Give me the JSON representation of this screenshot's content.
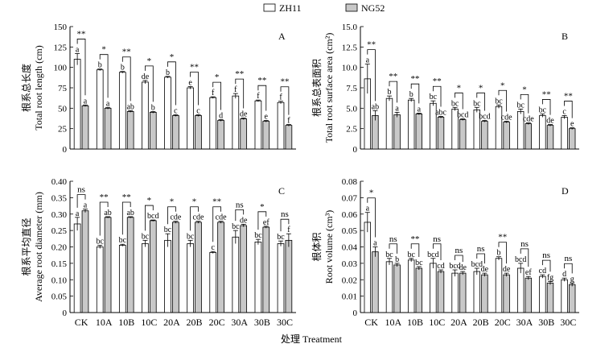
{
  "legend": {
    "series": [
      {
        "name": "ZH11",
        "color": "#ffffff"
      },
      {
        "name": "NG52",
        "color": "#c8c8c8"
      }
    ]
  },
  "x_axis_title": "处理 Treatment",
  "chart_data": [
    {
      "type": "bar",
      "panel": "A",
      "ylabel_cn": "根系总长度",
      "ylabel_en": "Total root length (cm)",
      "ylim": [
        0,
        150
      ],
      "yticks": [
        "0",
        "25",
        "50",
        "75",
        "100",
        "125",
        "150"
      ],
      "ytick_values": [
        0,
        25,
        50,
        75,
        100,
        125,
        150
      ],
      "categories": [
        "CK",
        "10A",
        "10B",
        "10C",
        "20A",
        "20B",
        "20C",
        "30A",
        "30B",
        "30C"
      ],
      "series": [
        {
          "name": "ZH11",
          "values": [
            110,
            97,
            94,
            82,
            88,
            75,
            63,
            65,
            59,
            57
          ],
          "errors": [
            7,
            1,
            1,
            2,
            1,
            1.5,
            1,
            3,
            1,
            1.5
          ],
          "letters": [
            "a",
            "b",
            "b",
            "de",
            "b",
            "e",
            "f",
            "f",
            "f",
            "f"
          ]
        },
        {
          "name": "NG52",
          "values": [
            53,
            50,
            46,
            45,
            41,
            41,
            35,
            37,
            34,
            29
          ],
          "errors": [
            1,
            1,
            1,
            1,
            1,
            1,
            1,
            1,
            1,
            1
          ],
          "letters": [
            "a",
            "a",
            "ab",
            "b",
            "c",
            "c",
            "d",
            "de",
            "e",
            "f"
          ]
        }
      ],
      "significance": [
        "**",
        "*",
        "**",
        "*",
        "*",
        "**",
        "*",
        "**",
        "**",
        "**"
      ]
    },
    {
      "type": "bar",
      "panel": "B",
      "ylabel_cn": "根系总表面积",
      "ylabel_en": "Total root surface area (cm²)",
      "ylim": [
        0,
        15
      ],
      "yticks": [
        "0",
        "2.5",
        "5.0",
        "7.5",
        "10.0",
        "12.5",
        "15.0"
      ],
      "ytick_values": [
        0,
        2.5,
        5,
        7.5,
        10,
        12.5,
        15
      ],
      "categories": [
        "CK",
        "10A",
        "10B",
        "10C",
        "20A",
        "20B",
        "20C",
        "30A",
        "30B",
        "30C"
      ],
      "series": [
        {
          "name": "ZH11",
          "values": [
            8.6,
            6.2,
            6.0,
            5.6,
            4.9,
            4.8,
            5.2,
            4.6,
            4.1,
            3.9
          ],
          "errors": [
            1.8,
            0.3,
            0.2,
            0.3,
            0.2,
            0.3,
            0.2,
            0.3,
            0.2,
            0.2
          ],
          "letters": [
            "a",
            "b",
            "b",
            "bc",
            "bc",
            "bc",
            "bc",
            "bc",
            "bc",
            "c"
          ]
        },
        {
          "name": "NG52",
          "values": [
            4.1,
            4.2,
            4.3,
            3.9,
            3.6,
            3.4,
            3.3,
            3.1,
            2.9,
            2.5
          ],
          "errors": [
            0.6,
            0.3,
            0.1,
            0.1,
            0.1,
            0.1,
            0.1,
            0.1,
            0.1,
            0.1
          ],
          "letters": [
            "ab",
            "a",
            "a",
            "abc",
            "bcd",
            "bcd",
            "cde",
            "cde",
            "de",
            "e"
          ]
        }
      ],
      "significance": [
        "**",
        "**",
        "**",
        "**",
        "*",
        "*",
        "*",
        "*",
        "**",
        "**"
      ]
    },
    {
      "type": "bar",
      "panel": "C",
      "ylabel_cn": "根系平均直径",
      "ylabel_en": "Average root diameter (mm)",
      "ylim": [
        0,
        0.4
      ],
      "yticks": [
        "0",
        "0.05",
        "0.10",
        "0.15",
        "0.20",
        "0.25",
        "0.30",
        "0.35",
        "0.40"
      ],
      "ytick_values": [
        0,
        0.05,
        0.1,
        0.15,
        0.2,
        0.25,
        0.3,
        0.35,
        0.4
      ],
      "categories": [
        "CK",
        "10A",
        "10B",
        "10C",
        "20A",
        "20B",
        "20C",
        "30A",
        "30B",
        "30C"
      ],
      "series": [
        {
          "name": "ZH11",
          "values": [
            0.27,
            0.2,
            0.205,
            0.21,
            0.22,
            0.21,
            0.183,
            0.23,
            0.215,
            0.21
          ],
          "errors": [
            0.02,
            0.005,
            0.003,
            0.01,
            0.02,
            0.01,
            0.003,
            0.02,
            0.008,
            0.008
          ],
          "letters": [
            "a",
            "bc",
            "bc",
            "bc",
            "bc",
            "bc",
            "c",
            "bc",
            "bc",
            "bc"
          ]
        },
        {
          "name": "NG52",
          "values": [
            0.31,
            0.29,
            0.29,
            0.28,
            0.275,
            0.275,
            0.275,
            0.265,
            0.26,
            0.22
          ],
          "errors": [
            0.005,
            0.002,
            0.002,
            0.002,
            0.003,
            0.003,
            0.003,
            0.004,
            0.003,
            0.02
          ],
          "letters": [
            "a",
            "ab",
            "ab",
            "bcd",
            "cde",
            "cde",
            "cde",
            "de",
            "ef",
            "f"
          ]
        }
      ],
      "significance": [
        "ns",
        "**",
        "**",
        "*",
        "*",
        "*",
        "**",
        "ns",
        "*",
        "ns"
      ]
    },
    {
      "type": "bar",
      "panel": "D",
      "ylabel_cn": "根体积",
      "ylabel_en": "Root volume (cm³)",
      "ylim": [
        0,
        0.08
      ],
      "yticks": [
        "0",
        "0.01",
        "0.02",
        "0.03",
        "0.04",
        "0.05",
        "0.06",
        "0.07",
        "0.08"
      ],
      "ytick_values": [
        0,
        0.01,
        0.02,
        0.03,
        0.04,
        0.05,
        0.06,
        0.07,
        0.08
      ],
      "categories": [
        "CK",
        "10A",
        "10B",
        "10C",
        "20A",
        "20B",
        "20C",
        "30A",
        "30B",
        "30C"
      ],
      "series": [
        {
          "name": "ZH11",
          "values": [
            0.055,
            0.031,
            0.032,
            0.03,
            0.024,
            0.025,
            0.033,
            0.027,
            0.022,
            0.02
          ],
          "errors": [
            0.006,
            0.002,
            0.001,
            0.003,
            0.002,
            0.002,
            0.001,
            0.003,
            0.001,
            0.001
          ],
          "letters": [
            "a",
            "bc",
            "bc",
            "bcd",
            "bcd",
            "bcd",
            "b",
            "bcd",
            "cd",
            "d"
          ]
        },
        {
          "name": "NG52",
          "values": [
            0.037,
            0.029,
            0.027,
            0.025,
            0.024,
            0.023,
            0.023,
            0.021,
            0.018,
            0.017
          ],
          "errors": [
            0.003,
            0.001,
            0.001,
            0.001,
            0.001,
            0.001,
            0.001,
            0.001,
            0.001,
            0.001
          ],
          "letters": [
            "a",
            "b",
            "bc",
            "cd",
            "de",
            "de",
            "de",
            "ef",
            "fg",
            "g"
          ]
        }
      ],
      "significance": [
        "*",
        "ns",
        "**",
        "ns",
        "ns",
        "ns",
        "**",
        "ns",
        "ns",
        "ns"
      ]
    }
  ]
}
